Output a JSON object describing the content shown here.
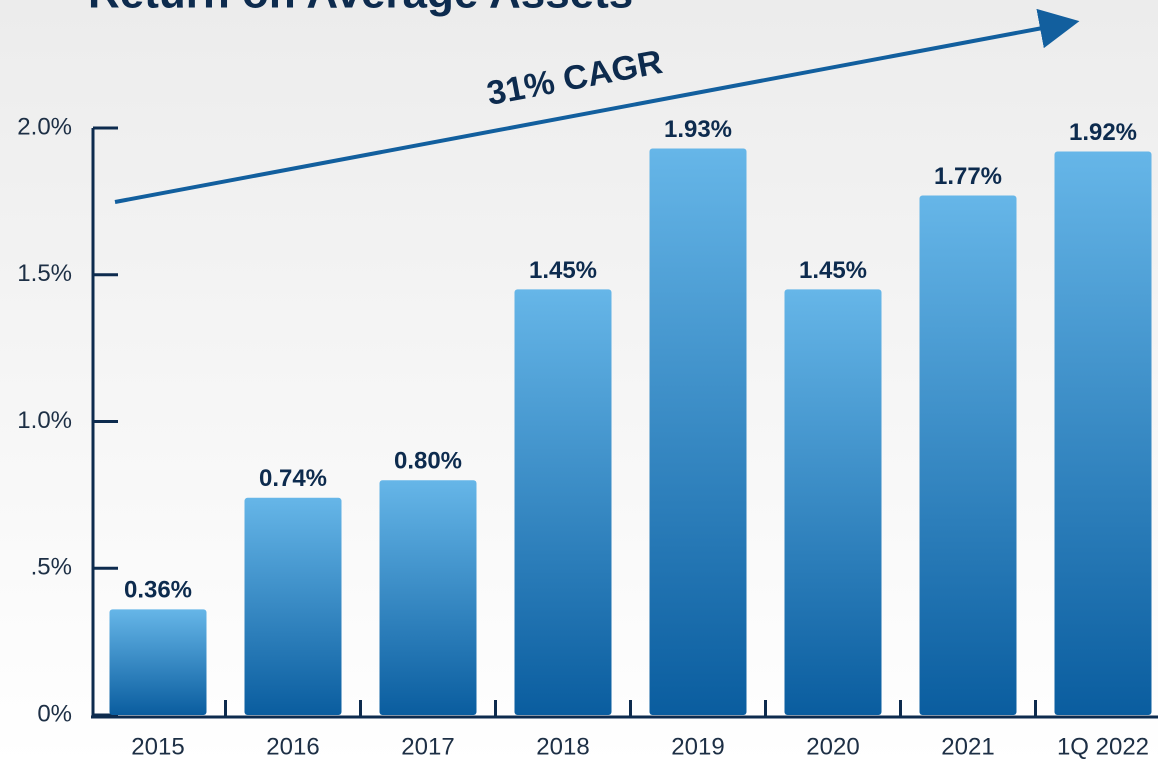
{
  "chart_data": {
    "type": "bar",
    "title": "Return on Average Assets",
    "annotation": "31% CAGR",
    "categories": [
      "2015",
      "2016",
      "2017",
      "2018",
      "2019",
      "2020",
      "2021",
      "1Q 2022"
    ],
    "values": [
      0.36,
      0.74,
      0.8,
      1.45,
      1.93,
      1.45,
      1.77,
      1.92
    ],
    "value_labels": [
      "0.36%",
      "0.74%",
      "0.80%",
      "1.45%",
      "1.93%",
      "1.45%",
      "1.77%",
      "1.92%"
    ],
    "color": "#2f86c8",
    "ylim": [
      0,
      2.0
    ],
    "yticks": [
      {
        "value": 0,
        "label": "0%"
      },
      {
        "value": 0.5,
        "label": ".5%"
      },
      {
        "value": 1.0,
        "label": "1.0%"
      },
      {
        "value": 1.5,
        "label": "1.5%"
      },
      {
        "value": 2.0,
        "label": "2.0%"
      }
    ],
    "grid": false
  }
}
